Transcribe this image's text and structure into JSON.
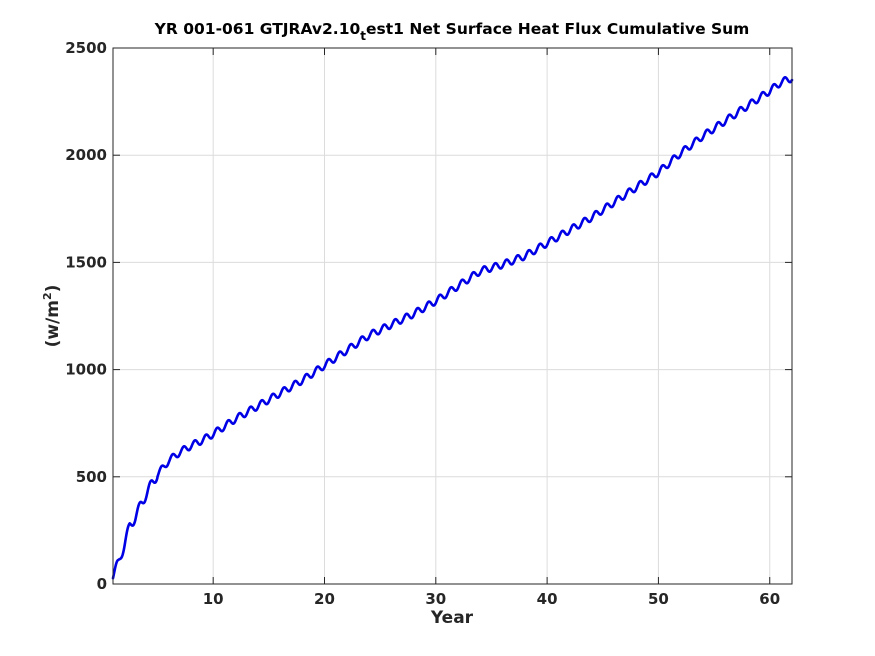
{
  "chart_data": {
    "type": "line",
    "title_main": "YR 001-061 GTJRAv2.10",
    "title_subscript": "t",
    "title_rest": "est1 Net Surface Heat Flux  Cumulative Sum",
    "xlabel": "Year",
    "ylabel_base": "(w/m",
    "ylabel_sup": "2",
    "ylabel_end": ")",
    "xlim": [
      1,
      62
    ],
    "ylim": [
      0,
      2500
    ],
    "xticks": [
      10,
      20,
      30,
      40,
      50,
      60
    ],
    "yticks": [
      0,
      500,
      1000,
      1500,
      2000,
      2500
    ],
    "grid": true,
    "seasonal_cycle": "annual oscillation superimposed on trend, amplitude about 20-40 w/m2",
    "series": [
      {
        "color": "#0000e6",
        "trend": {
          "x": [
            1,
            1.5,
            2,
            2.5,
            3,
            3.5,
            4,
            4.5,
            5,
            6,
            7,
            8,
            9,
            10,
            12,
            14,
            16,
            18,
            20,
            22,
            24,
            26,
            28,
            30,
            32,
            34,
            36,
            38,
            40,
            42,
            44,
            46,
            48,
            50,
            52,
            54,
            56,
            58,
            60,
            61,
            62
          ],
          "y": [
            40,
            100,
            180,
            270,
            310,
            370,
            420,
            470,
            510,
            575,
            615,
            645,
            670,
            700,
            770,
            830,
            890,
            950,
            1020,
            1090,
            1160,
            1210,
            1260,
            1320,
            1390,
            1460,
            1490,
            1530,
            1590,
            1650,
            1710,
            1780,
            1850,
            1920,
            2010,
            2090,
            2160,
            2230,
            2300,
            2340,
            2360
          ]
        }
      }
    ]
  }
}
